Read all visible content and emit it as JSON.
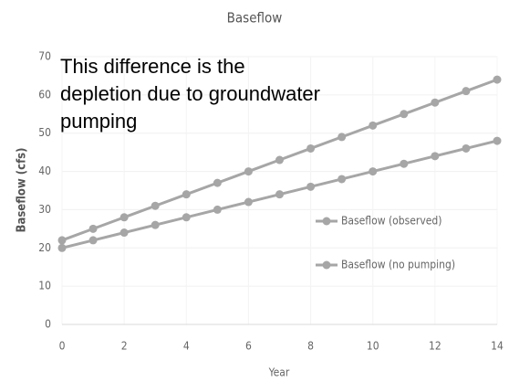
{
  "chart_data": {
    "type": "line",
    "title": "Baseflow",
    "x_label": "Year",
    "y_label": "Baseflow (cfs)",
    "annotation": [
      "This difference is the",
      "depletion due to groundwater",
      "pumping"
    ],
    "x": [
      0,
      1,
      2,
      3,
      4,
      5,
      6,
      7,
      8,
      9,
      10,
      11,
      12,
      13,
      14
    ],
    "series": [
      {
        "name": "Baseflow (observed)",
        "color": "#a6a6a6",
        "values": [
          20,
          22,
          24,
          26,
          28,
          30,
          32,
          34,
          36,
          38,
          40,
          42,
          44,
          46,
          48
        ]
      },
      {
        "name": "Baseflow (no pumping)",
        "color": "#a6a6a6",
        "values": [
          22,
          25,
          28,
          31,
          34,
          37,
          40,
          43,
          46,
          49,
          52,
          55,
          58,
          61,
          64
        ]
      }
    ],
    "xlim": [
      0,
      14
    ],
    "xticks": [
      0,
      2,
      4,
      6,
      8,
      10,
      12,
      14
    ],
    "ylim": [
      0,
      70
    ],
    "yticks": [
      0,
      10,
      20,
      30,
      40,
      50,
      60,
      70
    ],
    "grid": true
  }
}
